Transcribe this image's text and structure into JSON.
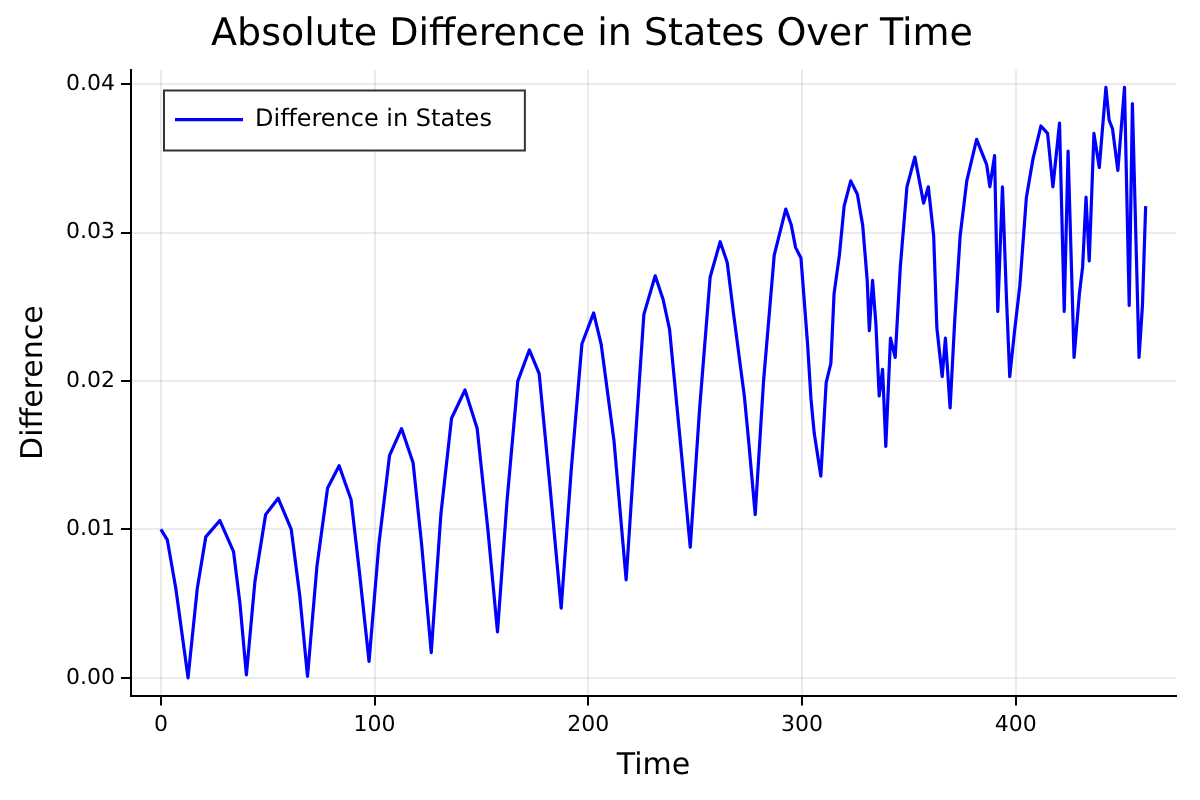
{
  "chart_data": {
    "type": "line",
    "title": "Absolute Difference in States Over Time",
    "xlabel": "Time",
    "ylabel": "Difference",
    "xlim": [
      -14,
      475
    ],
    "xticks": [
      0,
      100,
      200,
      300,
      400
    ],
    "ylim": [
      -0.0012,
      0.041
    ],
    "yticks": [
      {
        "value": 0,
        "label": "0.00"
      },
      {
        "value": 0.01,
        "label": "0.01"
      },
      {
        "value": 0.02,
        "label": "0.02"
      },
      {
        "value": 0.03,
        "label": "0.03"
      },
      {
        "value": 0.04,
        "label": "0.04"
      }
    ],
    "grid": true,
    "legend": "top left",
    "marker": "none",
    "line_style": "solid",
    "series": [
      {
        "name": "Difference in States",
        "color": "#0000ff",
        "x": [
          0,
          3,
          7,
          12.7,
          17,
          21,
          27.6,
          34,
          37,
          40,
          44,
          49,
          54.9,
          61,
          65,
          68.6,
          73,
          78,
          83.4,
          89,
          93,
          97.4,
          102,
          107,
          112.6,
          118,
          122,
          126.5,
          131,
          136,
          142.3,
          148,
          153,
          157.5,
          162,
          167,
          172.4,
          177,
          182,
          187.3,
          192,
          197,
          202.5,
          206,
          212,
          217.7,
          222,
          226,
          231.3,
          235,
          238,
          243,
          247.7,
          252,
          257,
          261.7,
          265,
          268,
          273,
          275,
          278.1,
          282,
          287,
          292.4,
          295,
          297,
          299.5,
          302.6,
          304.2,
          305.7,
          308.8,
          311.3,
          313.5,
          315,
          317.5,
          319.7,
          322.8,
          325.9,
          328.4,
          330.5,
          331.5,
          333,
          334.6,
          336.1,
          337.7,
          339.2,
          341.4,
          343.6,
          346,
          349.1,
          352.8,
          356.9,
          359.1,
          361.6,
          363.1,
          365.6,
          367.1,
          369.3,
          371.5,
          374,
          377.1,
          381.7,
          386.4,
          387.9,
          390.1,
          391.6,
          393.8,
          395.7,
          397.2,
          399.4,
          401.9,
          405,
          408.1,
          411.8,
          414.9,
          417.4,
          420.5,
          422.7,
          424.5,
          427.3,
          429.8,
          431.3,
          432.9,
          434.4,
          436.6,
          439.1,
          442.2,
          443.7,
          445.3,
          447.8,
          450.9,
          453.1,
          454.6,
          457.7,
          459.3,
          460.8
        ],
        "values": [
          0.01,
          0.0093,
          0.006,
          0.0,
          0.006,
          0.0095,
          0.0106,
          0.0085,
          0.005,
          0.0002,
          0.0065,
          0.011,
          0.0121,
          0.01,
          0.0055,
          0.0001,
          0.0075,
          0.0128,
          0.0143,
          0.012,
          0.007,
          0.0011,
          0.009,
          0.015,
          0.0168,
          0.0145,
          0.009,
          0.0017,
          0.011,
          0.0175,
          0.0194,
          0.0168,
          0.01,
          0.0031,
          0.012,
          0.02,
          0.0221,
          0.0205,
          0.013,
          0.0047,
          0.014,
          0.0225,
          0.0246,
          0.0225,
          0.016,
          0.0066,
          0.016,
          0.0245,
          0.0271,
          0.0255,
          0.0235,
          0.016,
          0.0088,
          0.018,
          0.027,
          0.0294,
          0.028,
          0.0245,
          0.019,
          0.016,
          0.011,
          0.02,
          0.0285,
          0.0316,
          0.0305,
          0.029,
          0.0283,
          0.0225,
          0.0188,
          0.0165,
          0.0136,
          0.0199,
          0.0212,
          0.0259,
          0.0285,
          0.0318,
          0.0335,
          0.0326,
          0.0305,
          0.0268,
          0.0234,
          0.0268,
          0.0238,
          0.019,
          0.0208,
          0.0156,
          0.0229,
          0.0216,
          0.0277,
          0.0331,
          0.0351,
          0.032,
          0.0331,
          0.0298,
          0.0236,
          0.0203,
          0.0229,
          0.0182,
          0.0242,
          0.0298,
          0.0335,
          0.0363,
          0.0346,
          0.0331,
          0.0352,
          0.0247,
          0.0331,
          0.0255,
          0.0203,
          0.0233,
          0.0264,
          0.0324,
          0.035,
          0.0372,
          0.0367,
          0.0331,
          0.0374,
          0.0247,
          0.0355,
          0.0216,
          0.0259,
          0.0277,
          0.0324,
          0.0281,
          0.0367,
          0.0344,
          0.0398,
          0.0376,
          0.037,
          0.0342,
          0.0398,
          0.0251,
          0.0387,
          0.0216,
          0.0251,
          0.0318
        ]
      }
    ]
  }
}
